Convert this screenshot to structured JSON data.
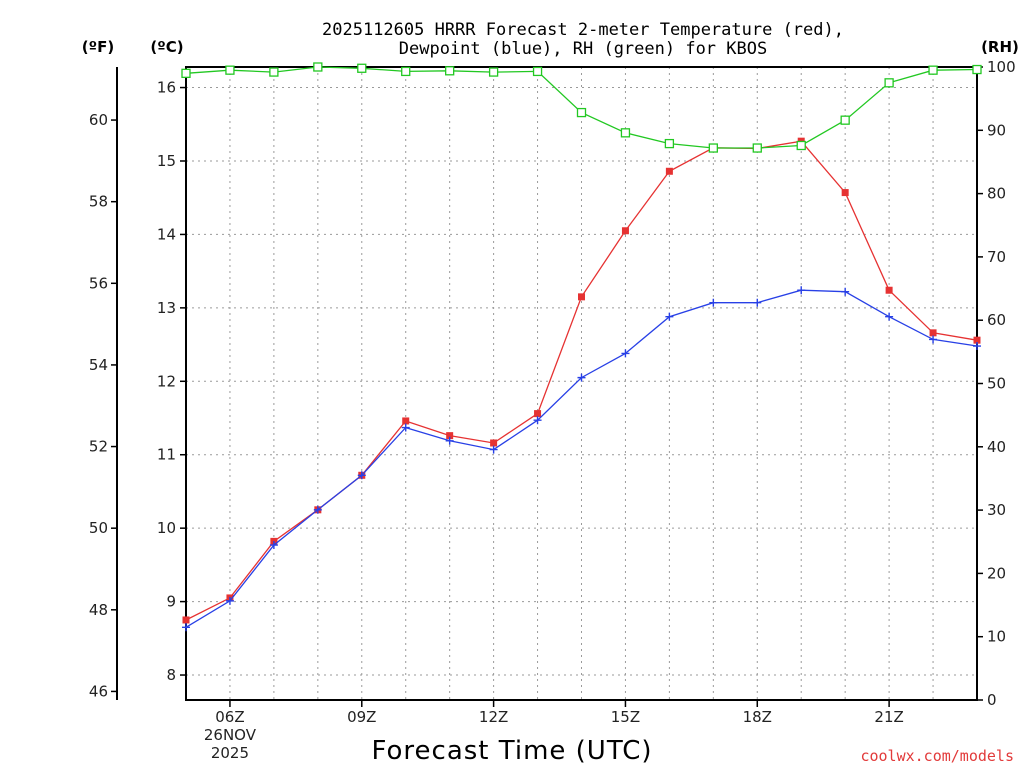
{
  "chart_data": {
    "type": "line",
    "title": [
      "2025112605 HRRR Forecast 2-meter Temperature (red),",
      "Dewpoint (blue), RH (green) for KBOS"
    ],
    "xlabel": "Forecast Time (UTC)",
    "credit": "coolwx.com/models",
    "units": {
      "fahrenheit": "(ºF)",
      "celsius": "(ºC)",
      "rh": "(RH)"
    },
    "x_hours": [
      5,
      6,
      7,
      8,
      9,
      10,
      11,
      12,
      13,
      14,
      15,
      16,
      17,
      18,
      19,
      20,
      21,
      22,
      23
    ],
    "xlim": [
      5,
      23
    ],
    "x_ticks": [
      {
        "hour": 6,
        "lines": [
          "06Z",
          "26NOV",
          "2025"
        ]
      },
      {
        "hour": 9,
        "lines": [
          "09Z"
        ]
      },
      {
        "hour": 12,
        "lines": [
          "12Z"
        ]
      },
      {
        "hour": 15,
        "lines": [
          "15Z"
        ]
      },
      {
        "hour": 18,
        "lines": [
          "18Z"
        ]
      },
      {
        "hour": 21,
        "lines": [
          "21Z"
        ]
      }
    ],
    "celsius_axis": {
      "ylim": [
        7.66,
        16.28
      ],
      "ticks": [
        8,
        9,
        10,
        11,
        12,
        13,
        14,
        15,
        16
      ]
    },
    "fahrenheit_axis": {
      "ylim": [
        45.79,
        61.3
      ],
      "ticks": [
        46,
        48,
        50,
        52,
        54,
        56,
        58,
        60
      ]
    },
    "rh_axis": {
      "ylim": [
        0,
        100
      ],
      "ticks": [
        0,
        10,
        20,
        30,
        40,
        50,
        60,
        70,
        80,
        90,
        100
      ]
    },
    "series": [
      {
        "name": "Temperature",
        "axis": "celsius",
        "color": "#e63232",
        "marker": "filled-square",
        "values": [
          8.75,
          9.05,
          9.82,
          10.25,
          10.72,
          11.46,
          11.26,
          11.16,
          11.56,
          13.15,
          14.05,
          14.86,
          15.18,
          15.17,
          15.27,
          14.57,
          13.24,
          12.66,
          12.56
        ]
      },
      {
        "name": "Dewpoint",
        "axis": "celsius",
        "color": "#2840e6",
        "marker": "plus",
        "values": [
          8.65,
          9.01,
          9.77,
          10.25,
          10.72,
          11.37,
          11.19,
          11.07,
          11.47,
          12.05,
          12.38,
          12.88,
          13.07,
          13.07,
          13.24,
          13.22,
          12.88,
          12.57,
          12.48
        ]
      },
      {
        "name": "RH",
        "axis": "rh",
        "color": "#22c822",
        "marker": "open-square",
        "values": [
          99.0,
          99.5,
          99.2,
          100,
          99.8,
          99.3,
          99.4,
          99.2,
          99.3,
          92.8,
          89.6,
          87.9,
          87.2,
          87.2,
          87.6,
          91.6,
          97.5,
          99.5,
          99.6
        ]
      }
    ]
  }
}
